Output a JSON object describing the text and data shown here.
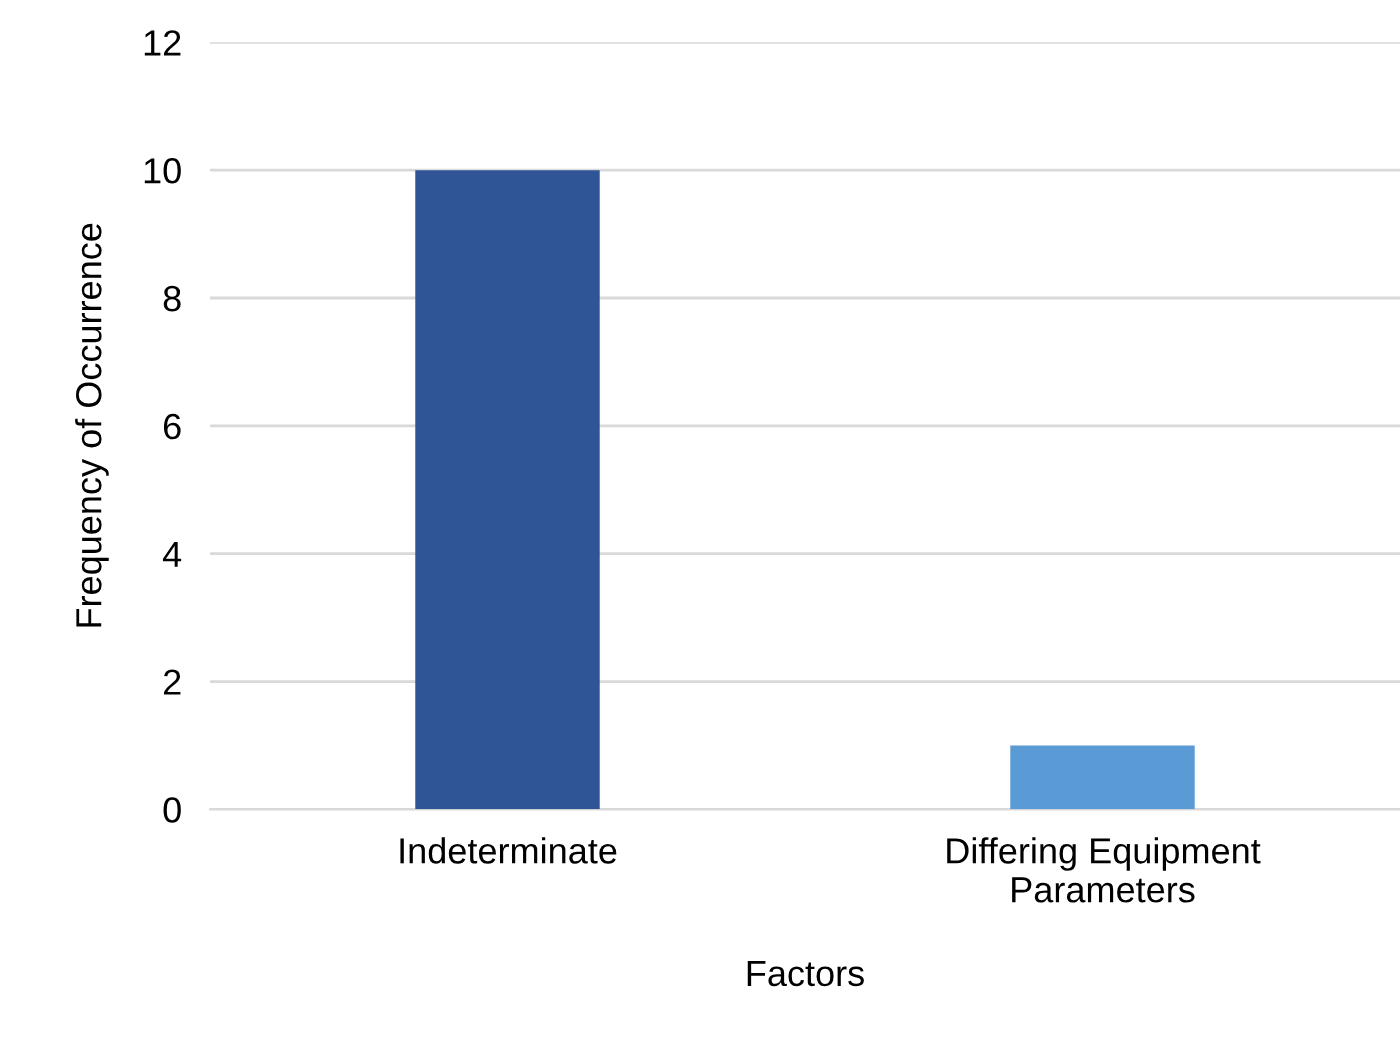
{
  "chart_data": {
    "type": "bar",
    "xlabel": "Factors",
    "ylabel": "Frequency of Occurrence",
    "categories": [
      "Indeterminate",
      "Differing Equipment Parameters"
    ],
    "values": [
      10,
      1
    ],
    "colors": [
      "#2f5597",
      "#5b9bd5"
    ],
    "ylim": [
      0,
      12
    ],
    "yticks": [
      0,
      2,
      4,
      6,
      8,
      10,
      12
    ],
    "grid": "y"
  }
}
